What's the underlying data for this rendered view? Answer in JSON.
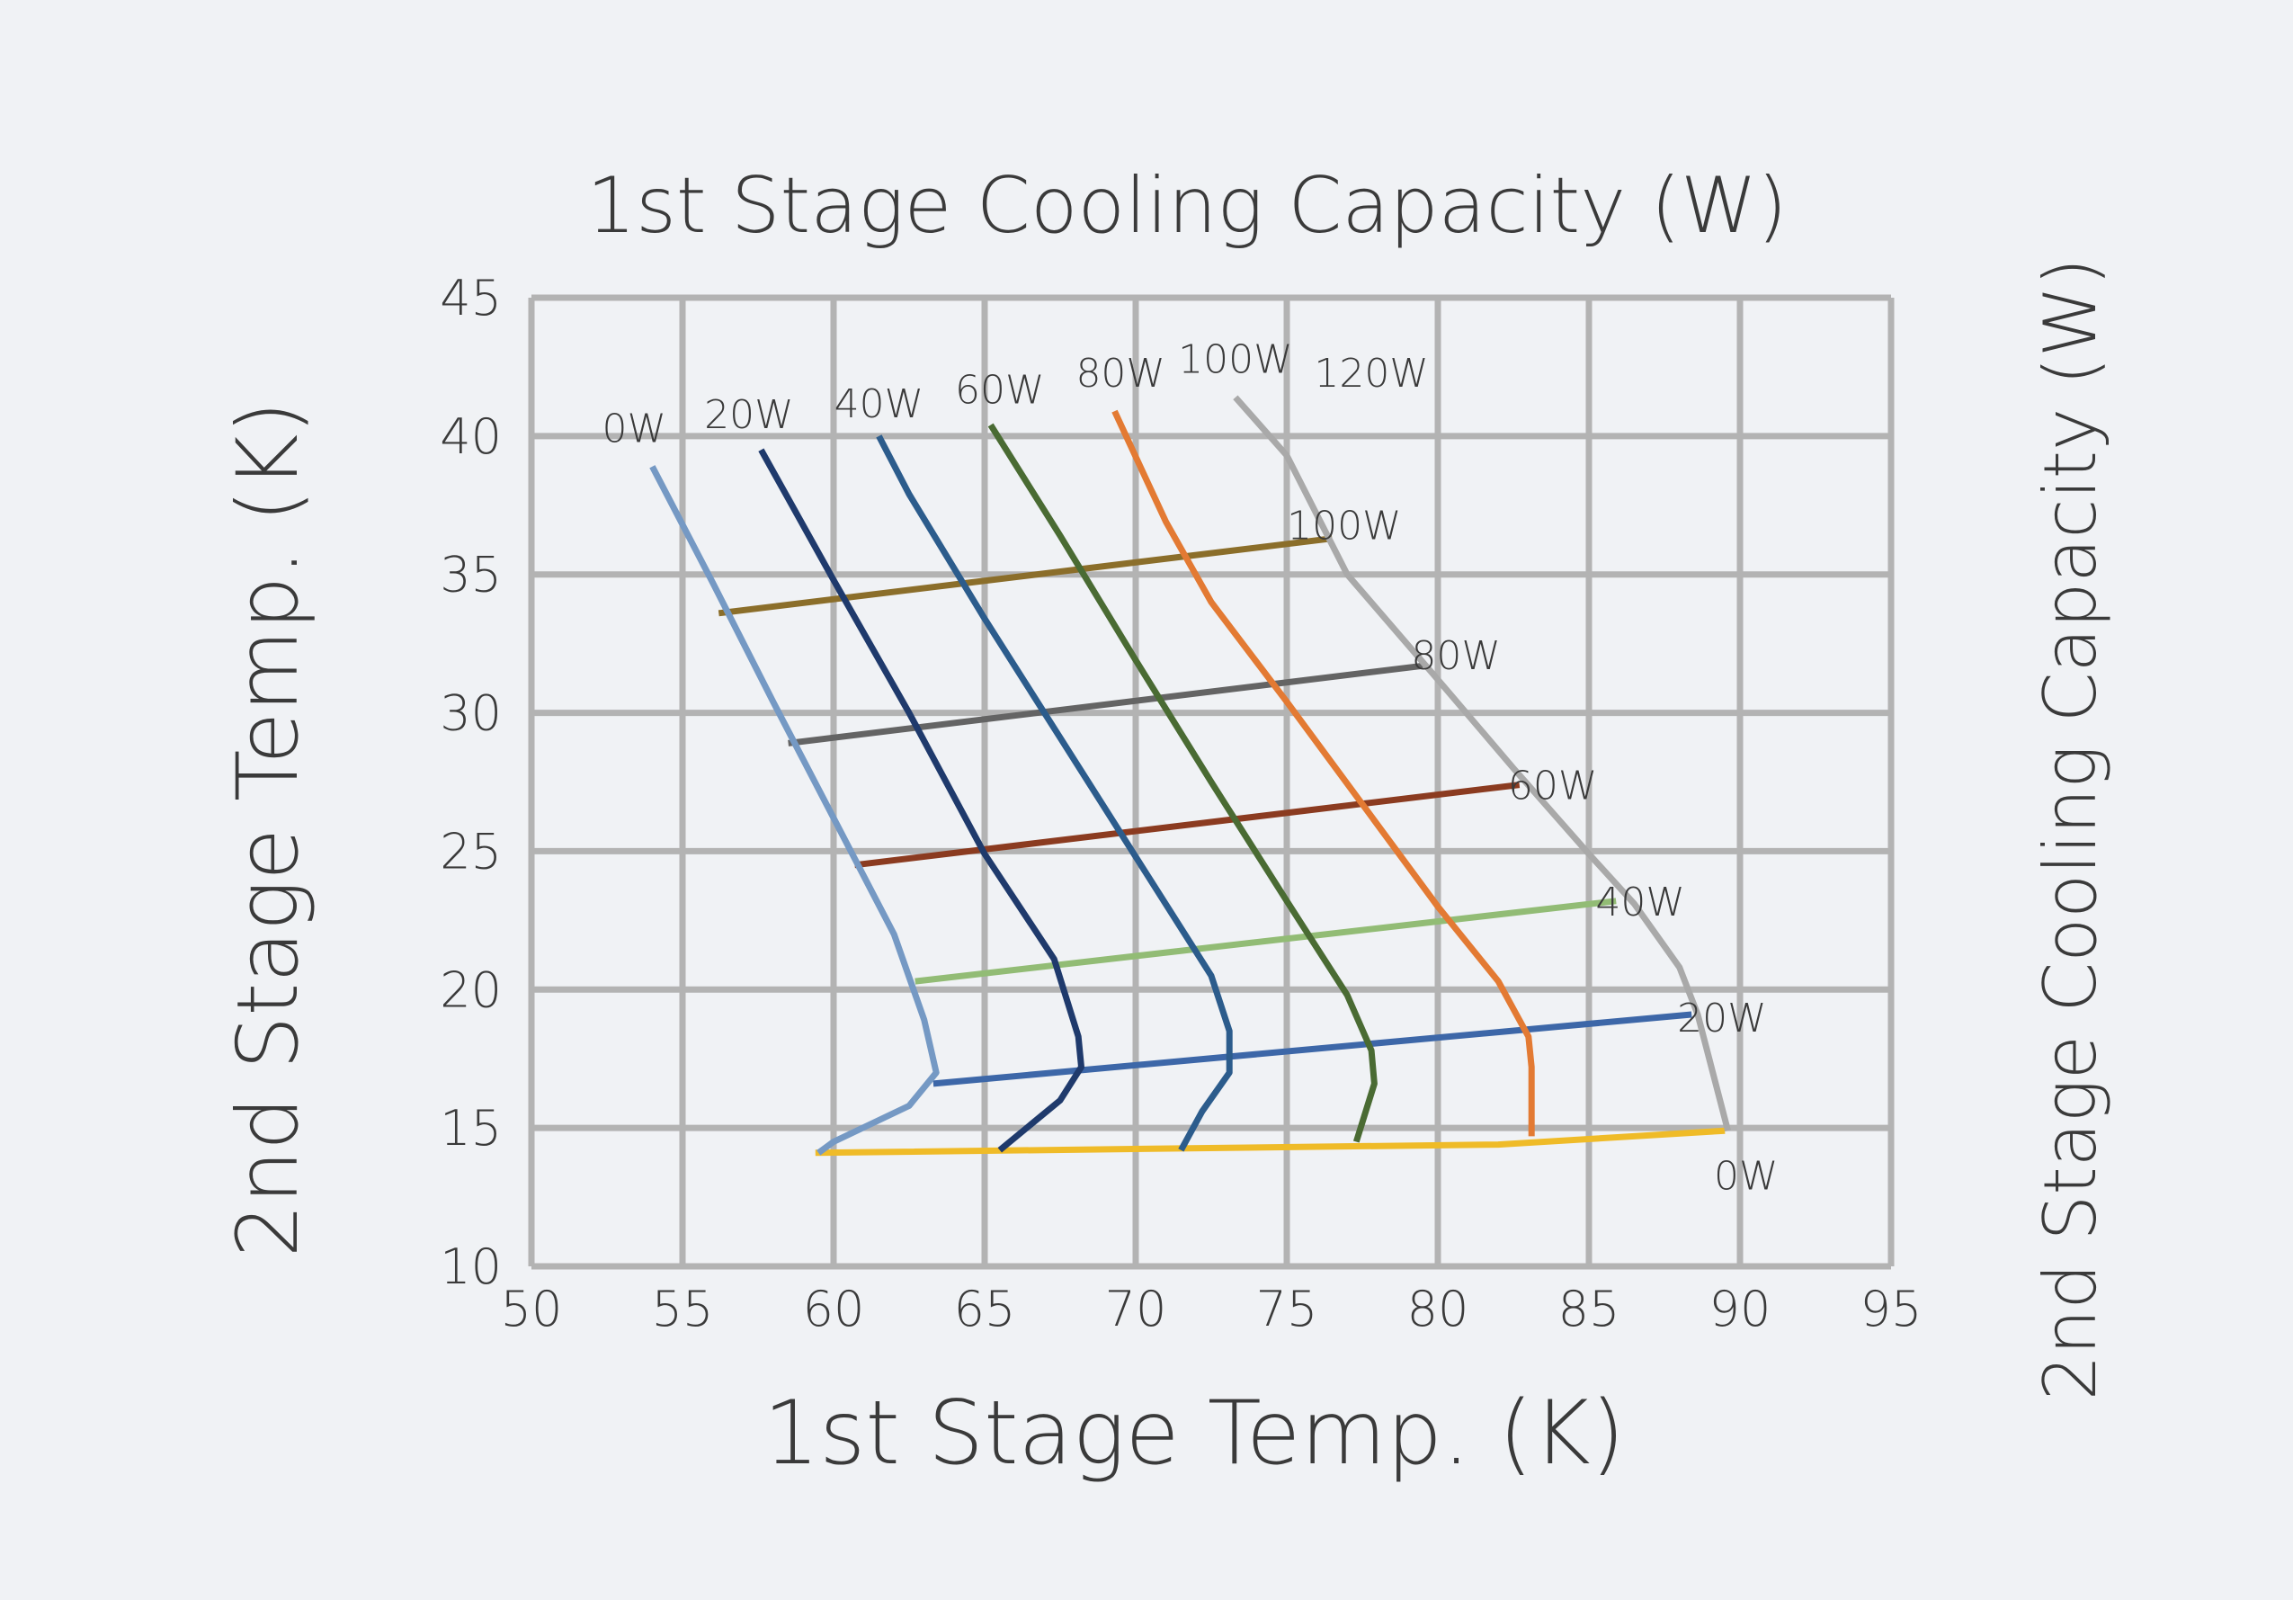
{
  "chart_data": {
    "type": "line",
    "title": "1st Stage Cooling Capacity (W)",
    "xlabel": "1st Stage Temp. (K)",
    "ylabel": "2nd Stage  Temp. (K)",
    "y2label": "2nd Stage Cooling Capacity (W)",
    "xlim": [
      50,
      95
    ],
    "ylim": [
      10,
      45
    ],
    "xticks": [
      50,
      55,
      60,
      65,
      70,
      75,
      80,
      85,
      90,
      95
    ],
    "yticks": [
      10,
      15,
      20,
      25,
      30,
      35,
      40,
      45
    ],
    "xtick_labels": [
      "50",
      "55",
      "60",
      "65",
      "70",
      "75",
      "80",
      "85",
      "90",
      "95"
    ],
    "ytick_labels": [
      "10",
      "15",
      "20",
      "25",
      "30",
      "35",
      "40",
      "45"
    ],
    "grid": true,
    "first_stage_series": [
      {
        "name": "0W",
        "color": "#7599c4",
        "label_at": [
          53.4,
          40.3
        ],
        "points": [
          [
            54.0,
            38.9
          ],
          [
            56.0,
            34.7
          ],
          [
            58.0,
            30.4
          ],
          [
            60.0,
            26.2
          ],
          [
            62.0,
            22.0
          ],
          [
            63.0,
            18.9
          ],
          [
            63.4,
            17.0
          ],
          [
            62.5,
            15.8
          ],
          [
            60.0,
            14.5
          ],
          [
            59.5,
            14.1
          ]
        ]
      },
      {
        "name": "20W",
        "color": "#1f3a6c",
        "label_at": [
          57.2,
          40.8
        ],
        "points": [
          [
            57.6,
            39.5
          ],
          [
            60.0,
            34.8
          ],
          [
            62.5,
            30.0
          ],
          [
            65.0,
            24.9
          ],
          [
            67.3,
            21.1
          ],
          [
            68.1,
            18.3
          ],
          [
            68.2,
            17.2
          ],
          [
            67.5,
            16.0
          ],
          [
            65.5,
            14.2
          ]
        ]
      },
      {
        "name": "40W",
        "color": "#2c5c8c",
        "label_at": [
          61.5,
          41.2
        ],
        "points": [
          [
            61.5,
            40.0
          ],
          [
            62.5,
            37.9
          ],
          [
            65.0,
            33.4
          ],
          [
            67.5,
            29.1
          ],
          [
            70.0,
            24.8
          ],
          [
            72.5,
            20.5
          ],
          [
            73.1,
            18.5
          ],
          [
            73.1,
            17.0
          ],
          [
            72.2,
            15.6
          ],
          [
            71.5,
            14.2
          ]
        ]
      },
      {
        "name": "60W",
        "color": "#4a6b33",
        "label_at": [
          65.5,
          41.7
        ],
        "points": [
          [
            65.2,
            40.4
          ],
          [
            67.5,
            36.4
          ],
          [
            70.0,
            31.9
          ],
          [
            72.5,
            27.5
          ],
          [
            75.0,
            23.2
          ],
          [
            77.0,
            19.8
          ],
          [
            77.8,
            17.8
          ],
          [
            77.9,
            16.6
          ],
          [
            77.3,
            14.5
          ]
        ]
      },
      {
        "name": "80W",
        "color": "#e37a33",
        "label_at": [
          69.5,
          42.3
        ],
        "points": [
          [
            69.3,
            40.9
          ],
          [
            71.0,
            36.9
          ],
          [
            72.5,
            34.0
          ],
          [
            75.0,
            30.4
          ],
          [
            77.5,
            26.7
          ],
          [
            80.0,
            23.0
          ],
          [
            82.0,
            20.3
          ],
          [
            83.0,
            18.3
          ],
          [
            83.1,
            17.2
          ],
          [
            83.1,
            14.7
          ]
        ]
      },
      {
        "name": "100W",
        "color": "#a9a9a9",
        "label_at": [
          73.3,
          42.8
        ],
        "points": [
          [
            73.3,
            41.4
          ],
          [
            75.0,
            39.3
          ],
          [
            77.0,
            35.0
          ],
          [
            80.0,
            31.2
          ],
          [
            82.5,
            28.0
          ],
          [
            85.0,
            24.9
          ],
          [
            86.5,
            23.1
          ],
          [
            88.0,
            20.8
          ],
          [
            88.6,
            19.1
          ],
          [
            89.6,
            14.9
          ]
        ]
      }
    ],
    "first_stage_caps": {
      "120W": {
        "label": "120W",
        "label_at": [
          77.8,
          42.3
        ]
      }
    },
    "second_stage_series": [
      {
        "name": "100W",
        "color": "#8b6e2a",
        "label_at": [
          76.9,
          36.8
        ],
        "points": [
          [
            56.2,
            33.6
          ],
          [
            76.5,
            36.3
          ]
        ]
      },
      {
        "name": "80W",
        "color": "#646464",
        "label_at": [
          80.6,
          32.1
        ],
        "points": [
          [
            58.5,
            28.9
          ],
          [
            79.5,
            31.7
          ]
        ]
      },
      {
        "name": "60W",
        "color": "#8b3b20",
        "label_at": [
          83.8,
          27.4
        ],
        "points": [
          [
            60.7,
            24.5
          ],
          [
            82.7,
            27.4
          ]
        ]
      },
      {
        "name": "40W",
        "color": "#92bc75",
        "label_at": [
          86.7,
          23.2
        ],
        "points": [
          [
            62.7,
            20.3
          ],
          [
            85.9,
            23.2
          ]
        ]
      },
      {
        "name": "20W",
        "color": "#3d67a8",
        "label_at": [
          89.4,
          19.0
        ],
        "points": [
          [
            63.3,
            16.6
          ],
          [
            88.4,
            19.1
          ]
        ]
      },
      {
        "name": "0W",
        "color": "#efbb28",
        "label_at": [
          90.2,
          13.3
        ],
        "points": [
          [
            59.4,
            14.1
          ],
          [
            82.0,
            14.4
          ],
          [
            89.5,
            14.9
          ]
        ]
      }
    ]
  }
}
